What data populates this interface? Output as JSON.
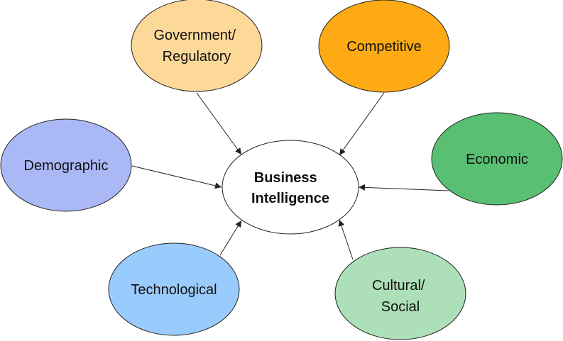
{
  "center": {
    "lines": [
      "Business",
      "Intelligence"
    ],
    "fill": "#ffffff"
  },
  "nodes": [
    {
      "id": "government-regulatory",
      "lines": [
        "Government/",
        "Regulatory"
      ],
      "fill": "#fdd999"
    },
    {
      "id": "competitive",
      "lines": [
        "Competitive"
      ],
      "fill": "#fdaa14"
    },
    {
      "id": "demographic",
      "lines": [
        "Demographic"
      ],
      "fill": "#aab9f6"
    },
    {
      "id": "economic",
      "lines": [
        "Economic"
      ],
      "fill": "#58bf73"
    },
    {
      "id": "technological",
      "lines": [
        "Technological"
      ],
      "fill": "#9acbfd"
    },
    {
      "id": "cultural-social",
      "lines": [
        "Cultural/",
        "Social"
      ],
      "fill": "#addfb8"
    }
  ],
  "stroke_color": "#222222"
}
